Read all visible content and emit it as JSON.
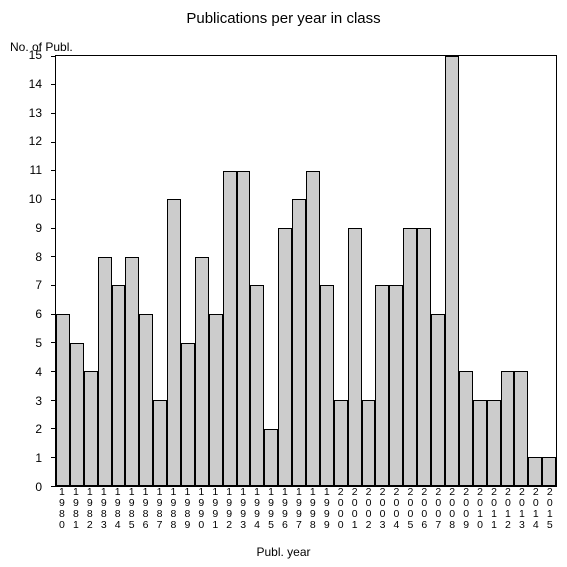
{
  "chart": {
    "type": "bar",
    "title": "Publications per year in class",
    "title_fontsize": 15,
    "y_axis_title": "No. of Publ.",
    "x_axis_title": "Publ. year",
    "label_fontsize": 12,
    "tick_fontsize": 12,
    "background_color": "#ffffff",
    "border_color": "#000000",
    "bar_fill": "#cccccc",
    "bar_border": "#000000",
    "ylim": [
      0,
      15
    ],
    "ytick_step": 1,
    "categories": [
      "1980",
      "1981",
      "1982",
      "1983",
      "1984",
      "1985",
      "1986",
      "1987",
      "1988",
      "1989",
      "1990",
      "1991",
      "1992",
      "1993",
      "1994",
      "1995",
      "1996",
      "1997",
      "1998",
      "1999",
      "2000",
      "2001",
      "2002",
      "2003",
      "2004",
      "2005",
      "2006",
      "2007",
      "2008",
      "2009",
      "2010",
      "2011",
      "2012",
      "2013",
      "2014",
      "2015"
    ],
    "values": [
      6,
      5,
      4,
      8,
      7,
      8,
      6,
      3,
      10,
      5,
      8,
      6,
      11,
      11,
      7,
      2,
      9,
      10,
      11,
      7,
      3,
      9,
      3,
      7,
      7,
      9,
      9,
      6,
      15,
      4,
      3,
      3,
      4,
      4,
      1,
      1
    ]
  }
}
